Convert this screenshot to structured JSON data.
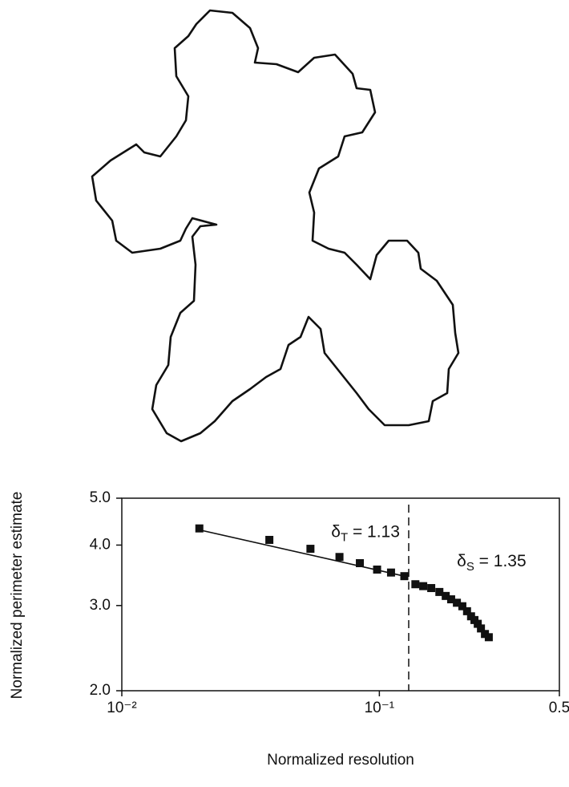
{
  "chart_data": {
    "type": "scatter",
    "x_label": "Normalized resolution",
    "y_label": "Normalized perimeter estimate",
    "x_scale": "log",
    "y_scale": "log",
    "xlim": [
      0.01,
      0.5
    ],
    "ylim": [
      2.0,
      5.0
    ],
    "xticks": [
      {
        "value": 0.01,
        "label": "10⁻²"
      },
      {
        "value": 0.1,
        "label": "10⁻¹"
      },
      0.5
    ],
    "yticks": [
      {
        "value": 2.0,
        "label": "2.0"
      },
      {
        "value": 3.0,
        "label": "3.0"
      },
      {
        "value": 4.0,
        "label": "4.0"
      },
      {
        "value": 5.0,
        "label": "5.0"
      }
    ],
    "color": "#111111",
    "x": [
      0.02,
      0.0374,
      0.054,
      0.07,
      0.084,
      0.098,
      0.111,
      0.125,
      0.138,
      0.148,
      0.159,
      0.171,
      0.181,
      0.19,
      0.2,
      0.21,
      0.219,
      0.227,
      0.234,
      0.241,
      0.248,
      0.257,
      0.266
    ],
    "values": [
      4.33,
      4.1,
      3.93,
      3.78,
      3.67,
      3.56,
      3.51,
      3.45,
      3.32,
      3.29,
      3.26,
      3.2,
      3.14,
      3.09,
      3.04,
      2.99,
      2.92,
      2.85,
      2.8,
      2.75,
      2.69,
      2.62,
      2.58
    ],
    "fit_line": {
      "x": [
        0.02,
        0.125
      ],
      "values": [
        4.3,
        3.45
      ]
    },
    "threshold_x": 0.13,
    "annotations": [
      {
        "symbol": "δ",
        "subscript": "T",
        "text": " = 1.13",
        "x": 0.065,
        "y": 4.25
      },
      {
        "symbol": "δ",
        "subscript": "S",
        "text": " = 1.35",
        "x": 0.2,
        "y": 3.7
      }
    ]
  }
}
